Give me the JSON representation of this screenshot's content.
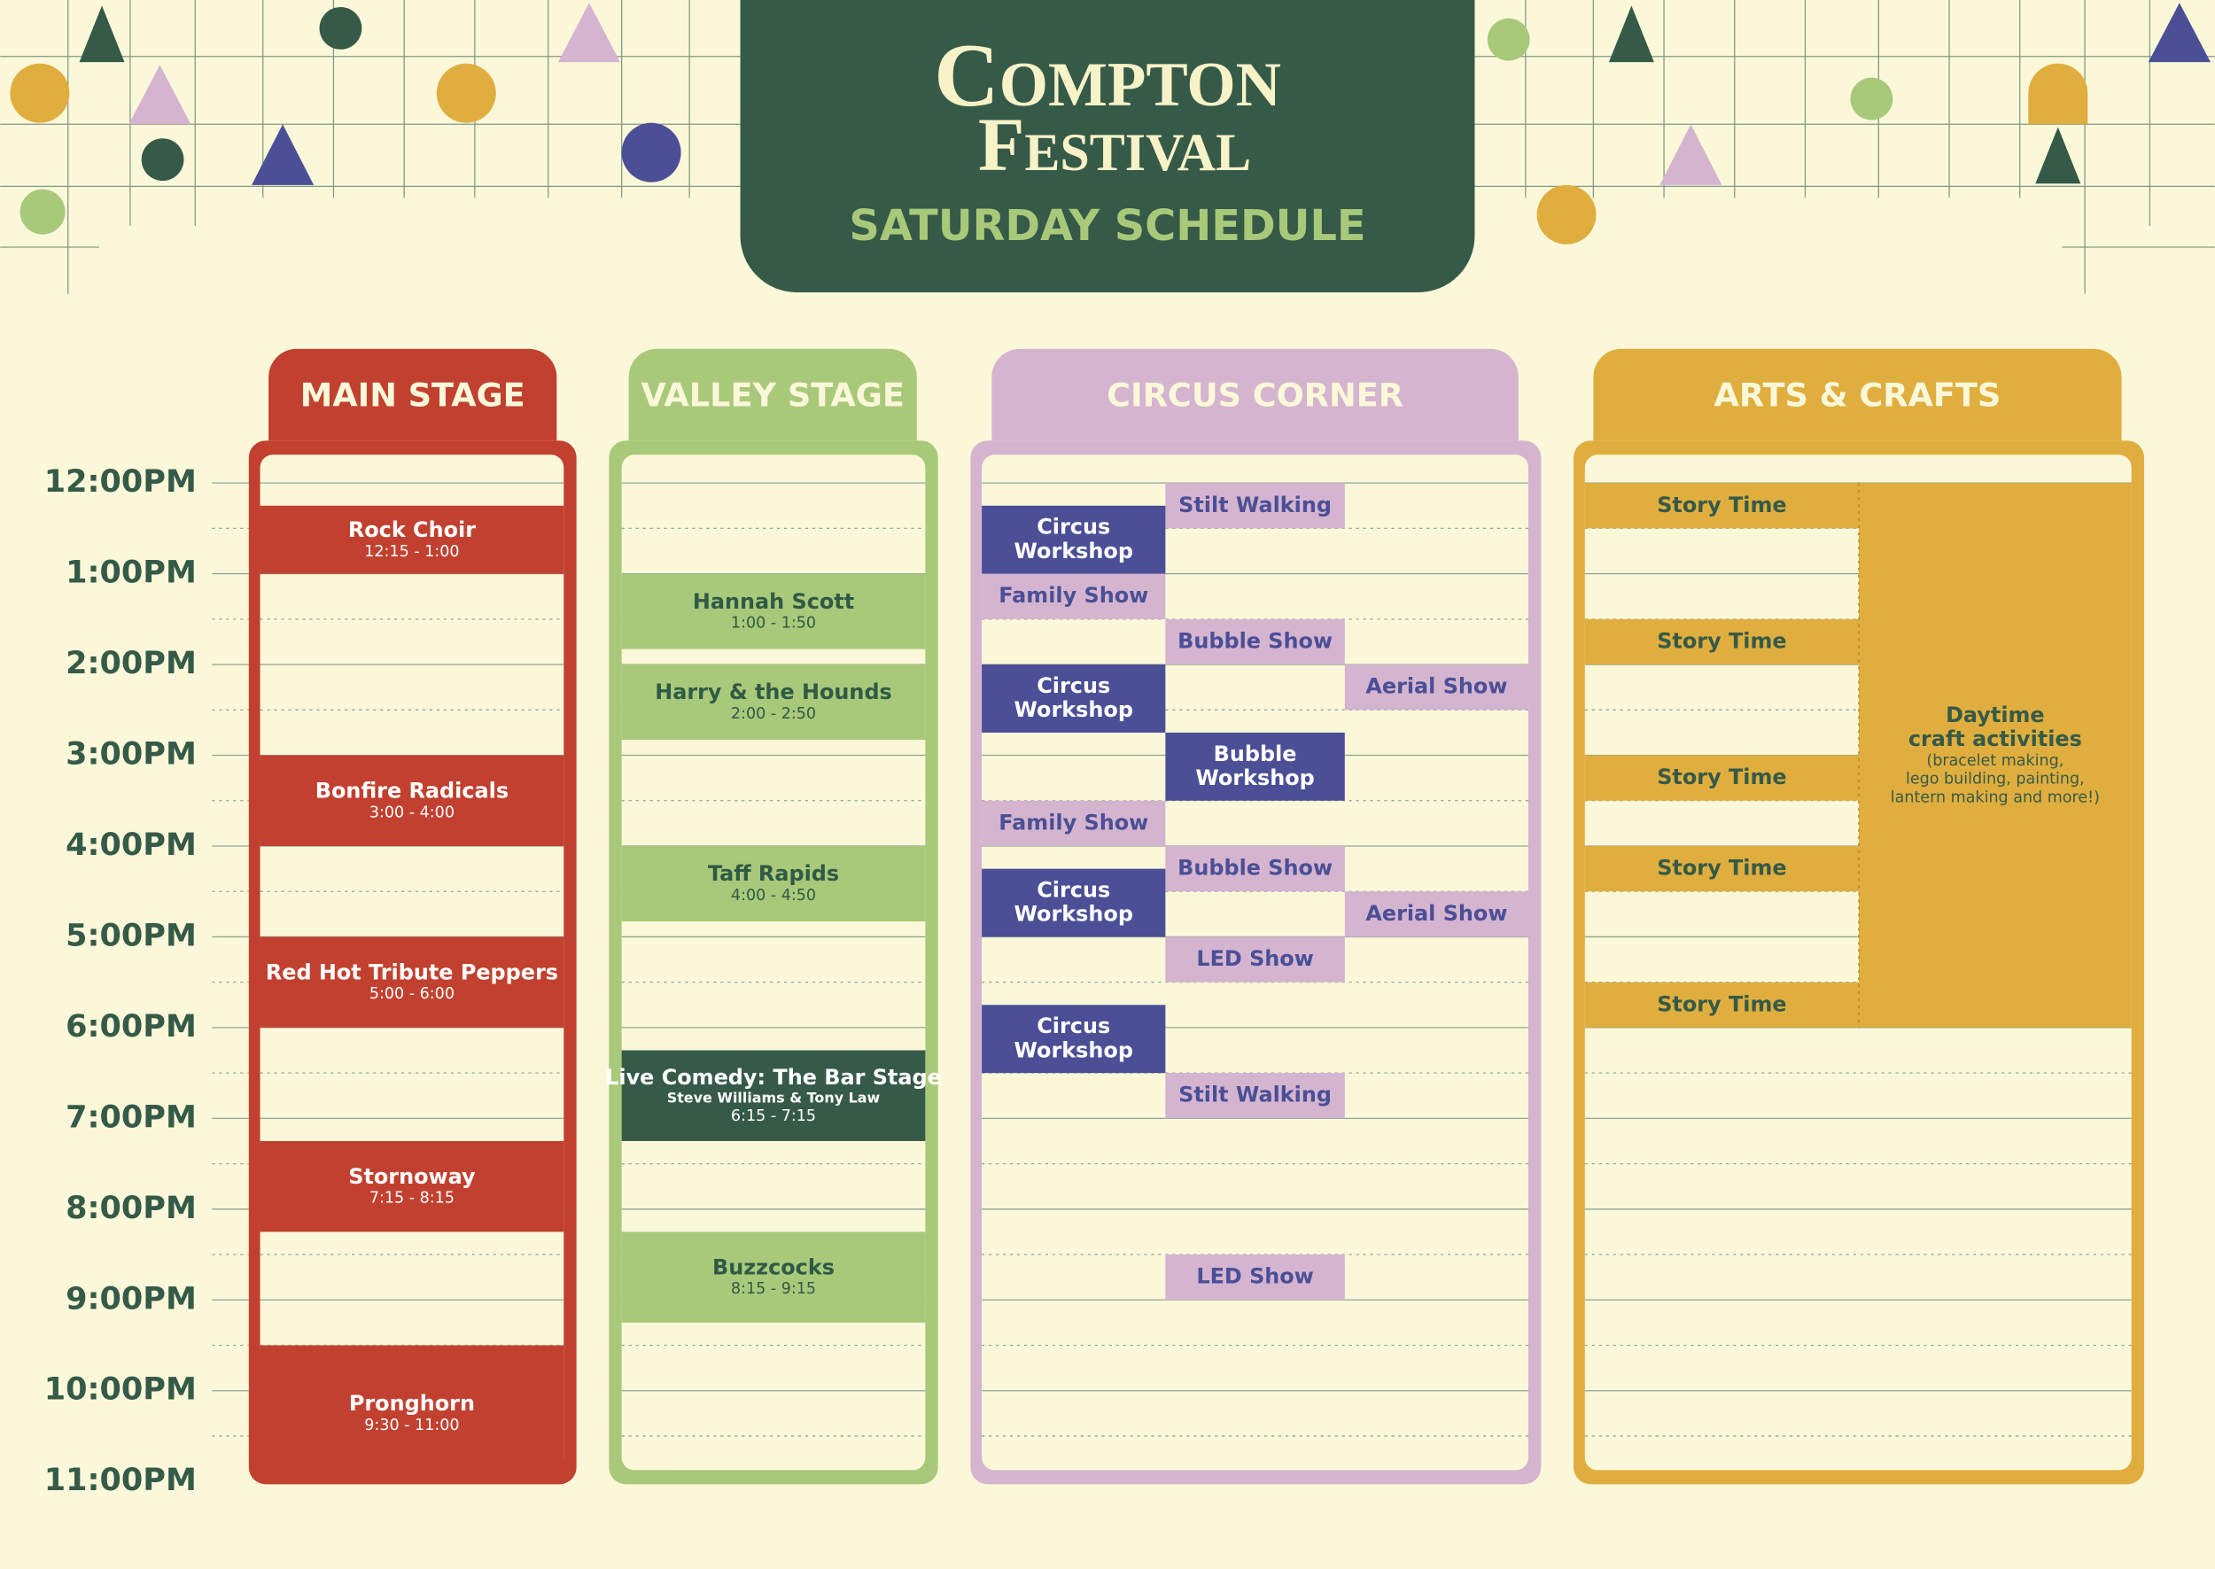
{
  "header": {
    "title": [
      "Compton",
      "Festival"
    ],
    "subtitle": "SATURDAY SCHEDULE"
  },
  "times": [
    "12:00PM",
    "1:00PM",
    "2:00PM",
    "3:00PM",
    "4:00PM",
    "5:00PM",
    "6:00PM",
    "7:00PM",
    "8:00PM",
    "9:00PM",
    "10:00PM",
    "11:00PM"
  ],
  "stages": [
    {
      "name": "MAIN STAGE",
      "events": [
        {
          "name": "Rock Choir",
          "time": "12:15 - 1:00"
        },
        {
          "name": "Bonfire Radicals",
          "time": "3:00 - 4:00"
        },
        {
          "name": "Red Hot Tribute Peppers",
          "time": "5:00 - 6:00"
        },
        {
          "name": "Stornoway",
          "time": "7:15 - 8:15"
        },
        {
          "name": "Pronghorn",
          "time": "9:30 - 11:00"
        }
      ]
    },
    {
      "name": "VALLEY STAGE",
      "events": [
        {
          "name": "Hannah Scott",
          "time": "1:00 - 1:50"
        },
        {
          "name": "Harry & the Hounds",
          "time": "2:00 - 2:50"
        },
        {
          "name": "Taff Rapids",
          "time": "4:00 - 4:50"
        },
        {
          "name": "Live Comedy: The Bar Stage",
          "sub": "Steve Williams & Tony Law",
          "time": "6:15 - 7:15"
        },
        {
          "name": "Buzzcocks",
          "time": "8:15 - 9:15"
        }
      ]
    },
    {
      "name": "CIRCUS CORNER",
      "events": [
        {
          "name": "Stilt Walking"
        },
        {
          "name": [
            "Circus",
            "Workshop"
          ]
        },
        {
          "name": "Family Show"
        },
        {
          "name": "Bubble Show"
        },
        {
          "name": [
            "Circus",
            "Workshop"
          ]
        },
        {
          "name": "Aerial Show"
        },
        {
          "name": [
            "Bubble",
            "Workshop"
          ]
        },
        {
          "name": "Family Show"
        },
        {
          "name": "Bubble Show"
        },
        {
          "name": [
            "Circus",
            "Workshop"
          ]
        },
        {
          "name": "Aerial Show"
        },
        {
          "name": "LED Show"
        },
        {
          "name": [
            "Circus",
            "Workshop"
          ]
        },
        {
          "name": "Stilt Walking"
        },
        {
          "name": "LED Show"
        }
      ]
    },
    {
      "name": "ARTS & CRAFTS",
      "events": [
        {
          "name": "Story Time"
        },
        {
          "name": "Story Time"
        },
        {
          "name": "Story Time"
        },
        {
          "name": "Story Time"
        },
        {
          "name": "Story Time"
        },
        {
          "name": [
            "Daytime",
            "craft activities"
          ],
          "note": [
            "(bracelet making,",
            "lego building, painting,",
            "lantern making and more!)"
          ]
        }
      ]
    }
  ]
}
